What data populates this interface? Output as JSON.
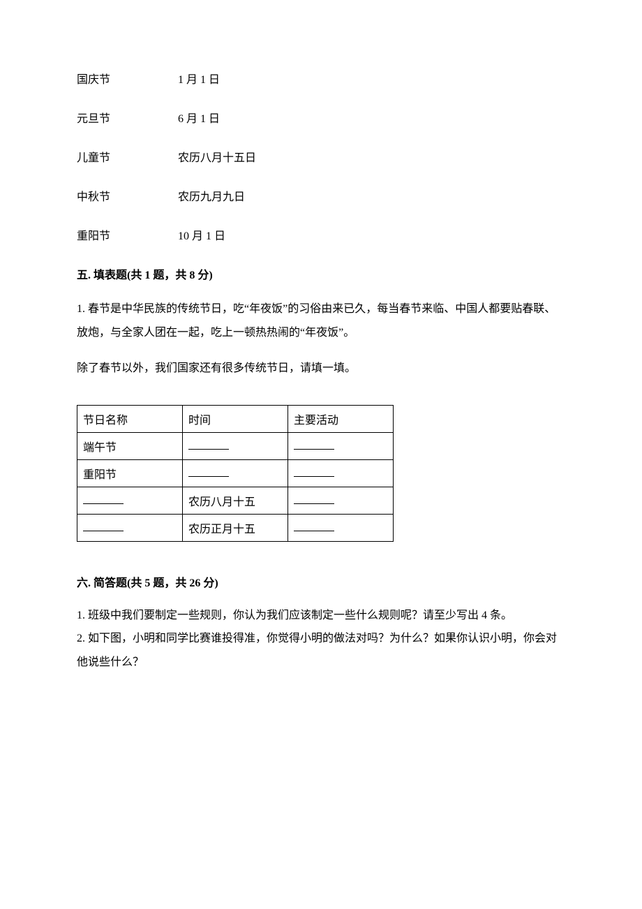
{
  "matching": {
    "rows": [
      {
        "left": "国庆节",
        "right": "1 月 1 日"
      },
      {
        "left": "元旦节",
        "right": "6 月 1 日"
      },
      {
        "left": "儿童节",
        "right": "农历八月十五日"
      },
      {
        "left": "中秋节",
        "right": "农历九月九日"
      },
      {
        "left": "重阳节",
        "right": "10 月 1 日"
      }
    ]
  },
  "section5": {
    "title": "五. 填表题(共 1 题，共 8 分)",
    "paragraph": "1. 春节是中华民族的传统节日，吃“年夜饭”的习俗由来已久，每当春节来临、中国人都要贴春联、放炮，与全家人团在一起，吃上一顿热热闹的“年夜饭”。",
    "sub_paragraph": "除了春节以外，我们国家还有很多传统节日，请填一填。",
    "table": {
      "headers": [
        "节日名称",
        "时间",
        "主要活动"
      ],
      "rows": [
        {
          "c0": "端午节",
          "c1": "__blank__",
          "c2": "__blank__"
        },
        {
          "c0": "重阳节",
          "c1": "__blank__",
          "c2": "__blank__"
        },
        {
          "c0": "__blank__",
          "c1": "农历八月十五",
          "c2": "__blank__"
        },
        {
          "c0": "__blank__",
          "c1": "农历正月十五",
          "c2": "__blank__"
        }
      ]
    }
  },
  "section6": {
    "title": "六. 简答题(共 5 题，共 26 分)",
    "q1": "1. 班级中我们要制定一些规则，你认为我们应该制定一些什么规则呢？请至少写出 4 条。",
    "q2": "2. 如下图，小明和同学比赛谁投得准，你觉得小明的做法对吗？为什么？如果你认识小明，你会对他说些什么？"
  }
}
